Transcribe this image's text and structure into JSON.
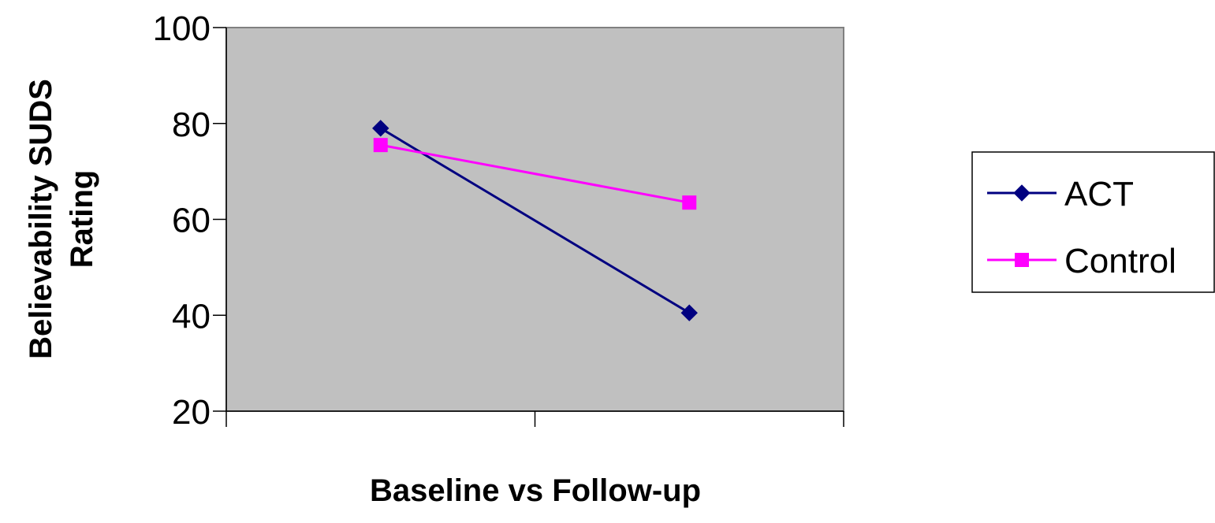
{
  "chart_data": {
    "type": "line",
    "title": "",
    "xlabel": "Baseline vs Follow-up",
    "ylabel": "Believability SUDS Rating",
    "ylabel_lines": [
      "Believability SUDS",
      "Rating"
    ],
    "categories": [
      "",
      ""
    ],
    "ylim": [
      20,
      100
    ],
    "yticks": [
      20,
      40,
      60,
      80,
      100
    ],
    "grid": false,
    "plot_background": "#c0c0c0",
    "legend_position": "right",
    "series": [
      {
        "name": "ACT",
        "values": [
          79,
          40.5
        ],
        "color": "#000080",
        "marker": "diamond"
      },
      {
        "name": "Control",
        "values": [
          75.5,
          63.5
        ],
        "color": "#ff00ff",
        "marker": "square"
      }
    ]
  }
}
